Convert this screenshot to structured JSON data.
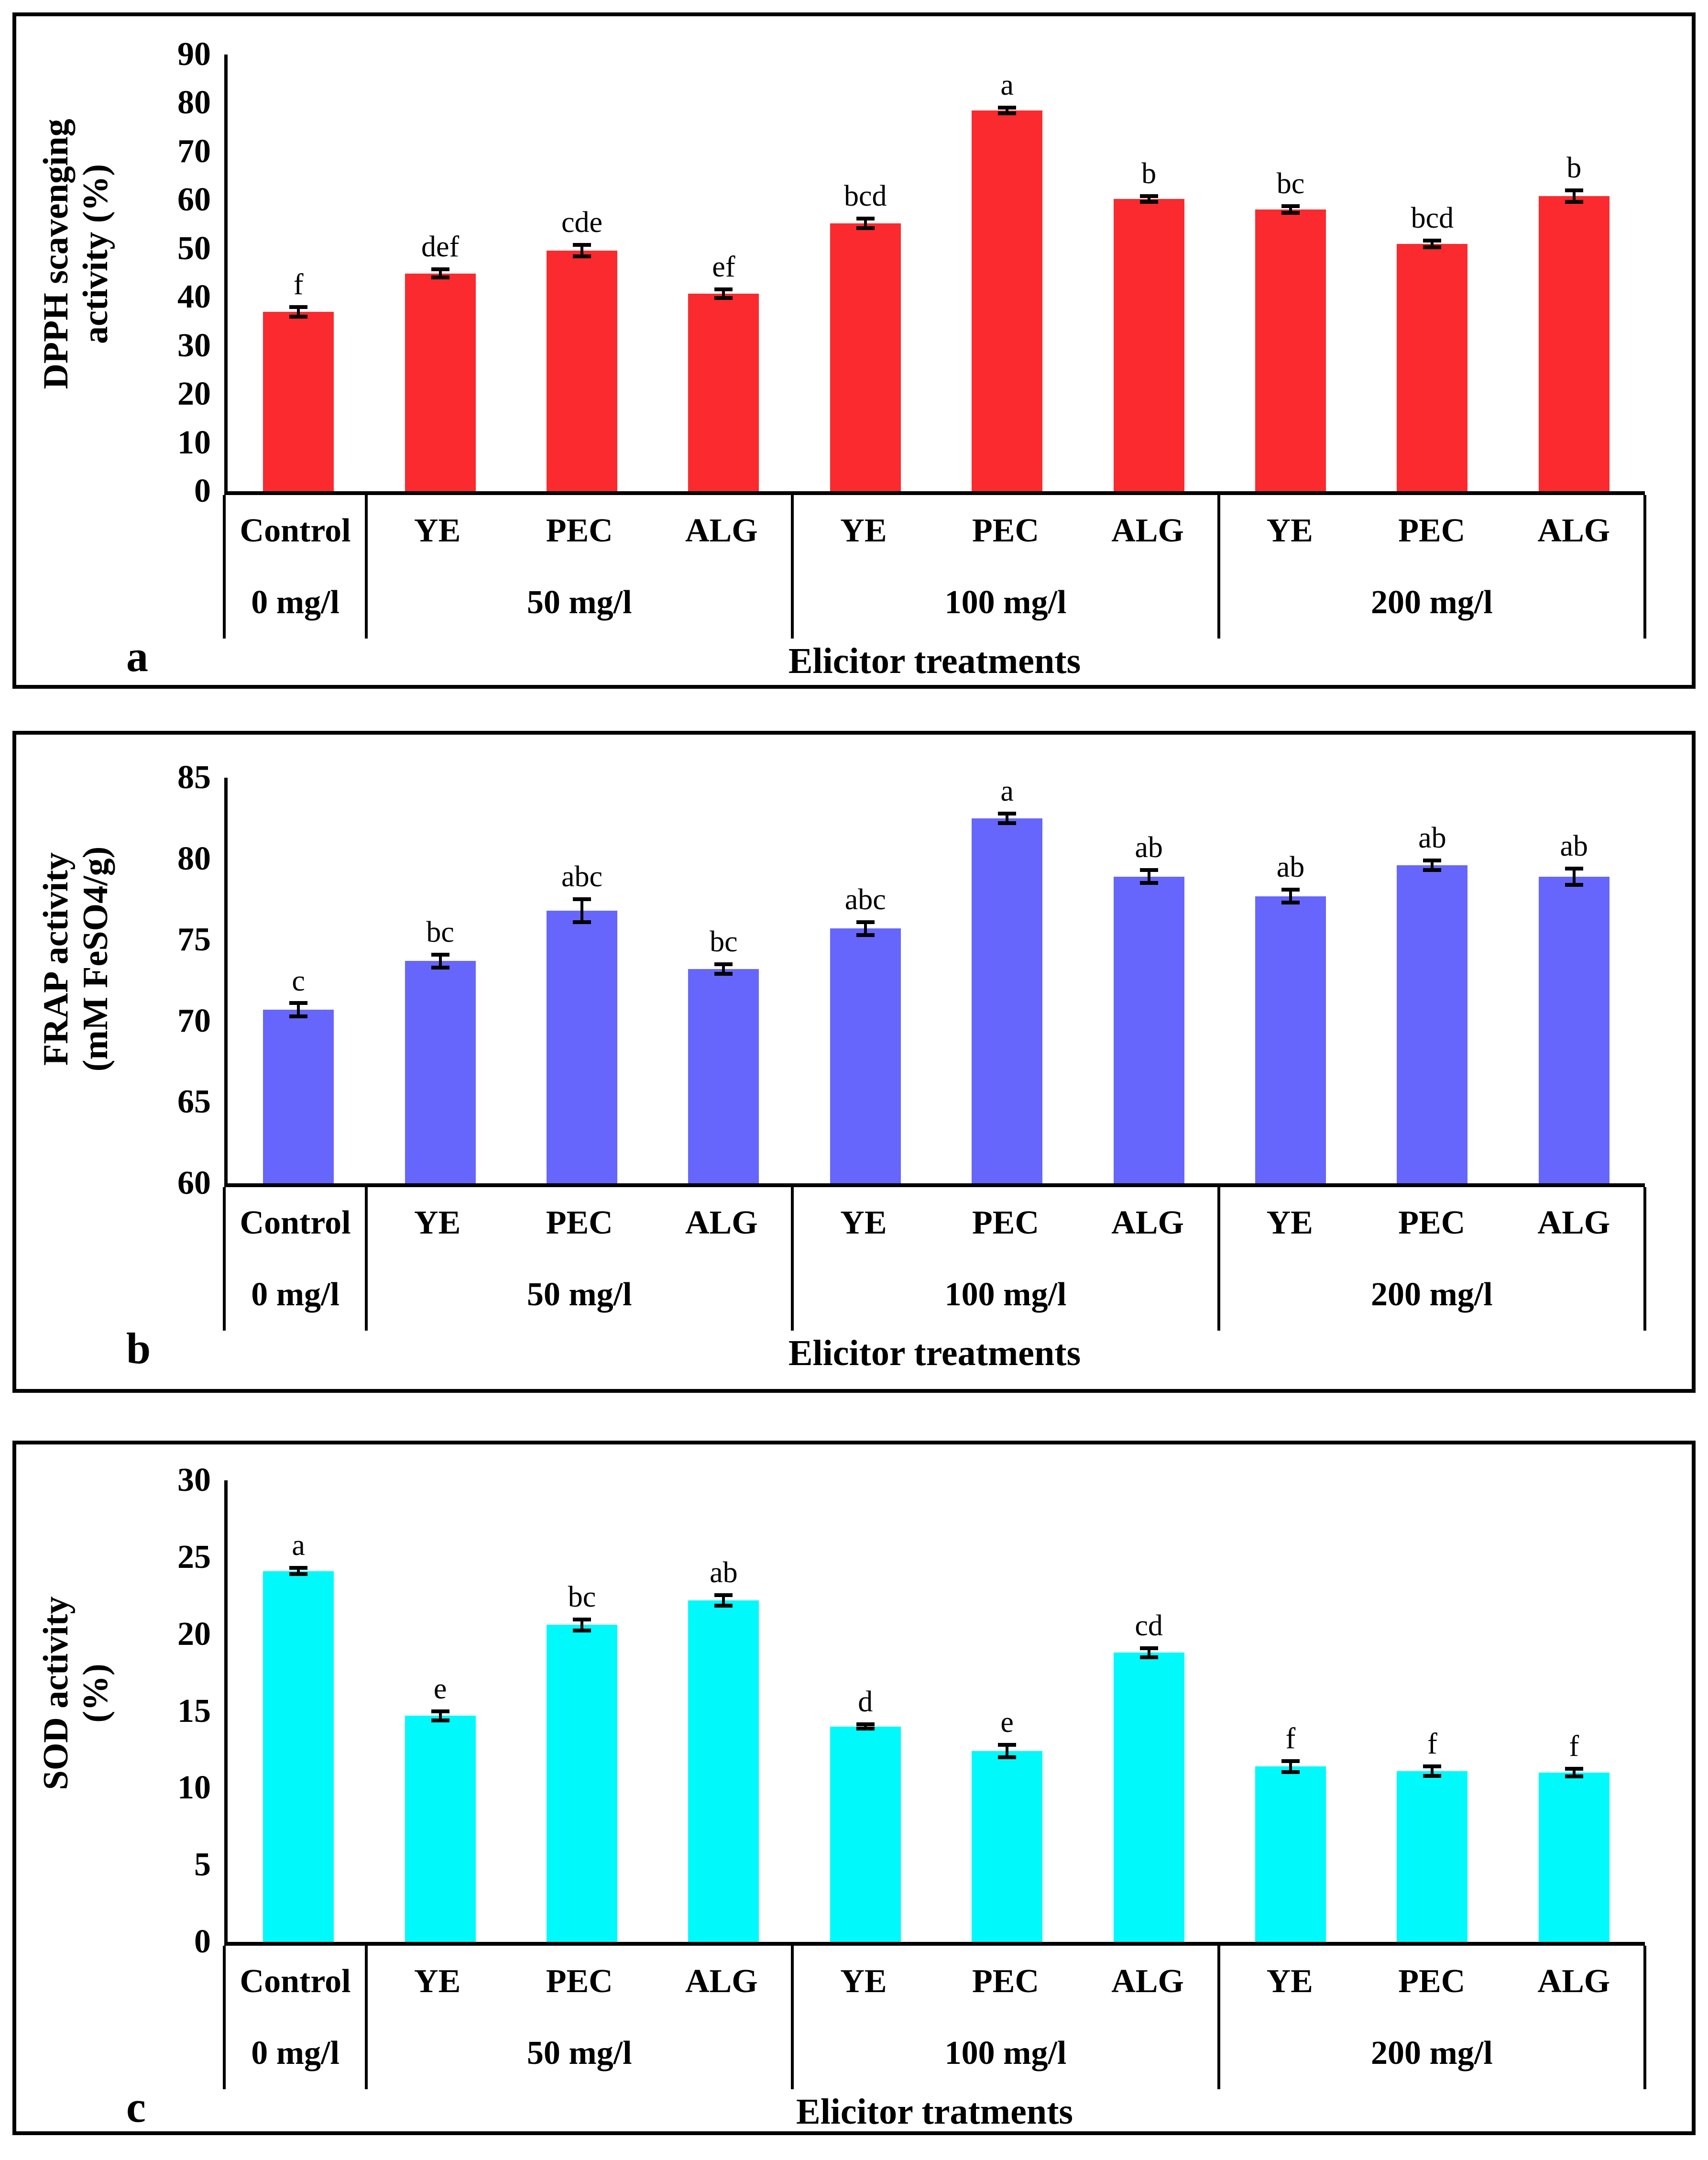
{
  "figure": {
    "background": "#ffffff",
    "panel_border_color": "#000000",
    "error_bar_color": "#000000"
  },
  "chart_data": [
    {
      "id": "a",
      "panel_letter": "a",
      "type": "bar",
      "bar_color": "#fa2a2e",
      "y_title_lines": [
        "DPPH scavenging",
        "activity (%)"
      ],
      "x_title": "Elicitor treatments",
      "ylim": [
        0,
        90
      ],
      "yticks": [
        0,
        10,
        20,
        30,
        40,
        50,
        60,
        70,
        80,
        90
      ],
      "grid": "off",
      "legend": "none",
      "categories": [
        "Control",
        "YE",
        "PEC",
        "ALG",
        "YE",
        "PEC",
        "ALG",
        "YE",
        "PEC",
        "ALG"
      ],
      "groups": [
        {
          "label": "0 mg/l",
          "span": 1
        },
        {
          "label": "50 mg/l",
          "span": 3
        },
        {
          "label": "100 mg/l",
          "span": 3
        },
        {
          "label": "200 mg/l",
          "span": 3
        }
      ],
      "values": [
        37.0,
        44.9,
        49.6,
        40.7,
        55.2,
        78.5,
        60.2,
        58.1,
        51.0,
        60.8
      ],
      "errors": [
        1.0,
        0.8,
        1.2,
        0.9,
        1.0,
        0.6,
        0.6,
        0.7,
        0.7,
        1.2
      ],
      "sig_letters": [
        "f",
        "def",
        "cde",
        "ef",
        "bcd",
        "a",
        "b",
        "bc",
        "bcd",
        "b"
      ]
    },
    {
      "id": "b",
      "panel_letter": "b",
      "type": "bar",
      "bar_color": "#6666fc",
      "y_title_lines": [
        "FRAP activity",
        "(mM FeSO4/g)"
      ],
      "x_title": "Elicitor treatments",
      "ylim": [
        60,
        85
      ],
      "yticks": [
        60,
        65,
        70,
        75,
        80,
        85
      ],
      "grid": "off",
      "legend": "none",
      "categories": [
        "Control",
        "YE",
        "PEC",
        "ALG",
        "YE",
        "PEC",
        "ALG",
        "YE",
        "PEC",
        "ALG"
      ],
      "groups": [
        {
          "label": "0 mg/l",
          "span": 1
        },
        {
          "label": "50 mg/l",
          "span": 3
        },
        {
          "label": "100 mg/l",
          "span": 3
        },
        {
          "label": "200 mg/l",
          "span": 3
        }
      ],
      "values": [
        70.7,
        73.7,
        76.8,
        73.2,
        75.7,
        82.5,
        78.9,
        77.7,
        79.6,
        78.9
      ],
      "errors": [
        0.4,
        0.4,
        0.7,
        0.3,
        0.4,
        0.3,
        0.4,
        0.4,
        0.3,
        0.5
      ],
      "sig_letters": [
        "c",
        "bc",
        "abc",
        "bc",
        "abc",
        "a",
        "ab",
        "ab",
        "ab",
        "ab"
      ]
    },
    {
      "id": "c",
      "panel_letter": "c",
      "type": "bar",
      "bar_color": "#00fafb",
      "y_title_lines": [
        "SOD activity",
        "(%)"
      ],
      "x_title": "Elicitor tratments",
      "ylim": [
        0,
        30
      ],
      "yticks": [
        0,
        5,
        10,
        15,
        20,
        25,
        30
      ],
      "grid": "off",
      "legend": "none",
      "categories": [
        "Control",
        "YE",
        "PEC",
        "ALG",
        "YE",
        "PEC",
        "ALG",
        "YE",
        "PEC",
        "ALG"
      ],
      "groups": [
        {
          "label": "0 mg/l",
          "span": 1
        },
        {
          "label": "50 mg/l",
          "span": 3
        },
        {
          "label": "100 mg/l",
          "span": 3
        },
        {
          "label": "200 mg/l",
          "span": 3
        }
      ],
      "values": [
        24.1,
        14.7,
        20.6,
        22.2,
        14.0,
        12.4,
        18.8,
        11.4,
        11.1,
        11.0
      ],
      "errors": [
        0.2,
        0.3,
        0.35,
        0.35,
        0.15,
        0.4,
        0.3,
        0.35,
        0.3,
        0.25
      ],
      "sig_letters": [
        "a",
        "e",
        "bc",
        "ab",
        "d",
        "e",
        "cd",
        "f",
        "f",
        "f"
      ]
    }
  ]
}
